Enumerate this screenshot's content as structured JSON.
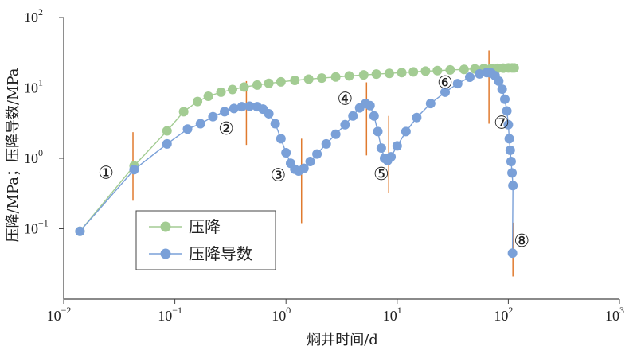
{
  "chart_data": {
    "type": "scatter",
    "xscale": "log",
    "yscale": "log",
    "xlim": [
      0.01,
      1000
    ],
    "ylim": [
      0.01,
      100
    ],
    "xlabel": "焖井时间/d",
    "ylabel": "压降/MPa；压降导数/MPa",
    "x_ticks": [
      {
        "base": "10",
        "exp": "−2"
      },
      {
        "base": "10",
        "exp": "−1"
      },
      {
        "base": "10",
        "exp": "0"
      },
      {
        "base": "10",
        "exp": "1"
      },
      {
        "base": "10",
        "exp": "2"
      },
      {
        "base": "10",
        "exp": "3"
      }
    ],
    "y_ticks": [
      {
        "base": "10",
        "exp": "−1"
      },
      {
        "base": "10",
        "exp": "0"
      },
      {
        "base": "10",
        "exp": "1"
      },
      {
        "base": "10",
        "exp": "2"
      }
    ],
    "legend": {
      "placement": "lower-left-inside"
    },
    "series": [
      {
        "name": "压降",
        "color": "#a3cc93",
        "points": [
          [
            0.014,
            0.092
          ],
          [
            0.043,
            0.78
          ],
          [
            0.085,
            2.45
          ],
          [
            0.12,
            4.6
          ],
          [
            0.16,
            6.4
          ],
          [
            0.2,
            7.6
          ],
          [
            0.26,
            8.7
          ],
          [
            0.33,
            9.5
          ],
          [
            0.42,
            10.3
          ],
          [
            0.55,
            11.0
          ],
          [
            0.7,
            11.6
          ],
          [
            0.9,
            12.2
          ],
          [
            1.2,
            12.8
          ],
          [
            1.6,
            13.3
          ],
          [
            2.1,
            13.8
          ],
          [
            2.8,
            14.3
          ],
          [
            3.7,
            14.8
          ],
          [
            5.0,
            15.3
          ],
          [
            6.5,
            15.7
          ],
          [
            8.5,
            16.1
          ],
          [
            11,
            16.5
          ],
          [
            14,
            16.9
          ],
          [
            18,
            17.3
          ],
          [
            23,
            17.6
          ],
          [
            30,
            18.0
          ],
          [
            40,
            18.3
          ],
          [
            50,
            18.6
          ],
          [
            60,
            18.8
          ],
          [
            70,
            18.9
          ],
          [
            80,
            19.0
          ],
          [
            90,
            19.1
          ],
          [
            100,
            19.2
          ],
          [
            108,
            19.2
          ],
          [
            113,
            19.2
          ]
        ]
      },
      {
        "name": "压降导数",
        "color": "#7aa0d8",
        "points": [
          [
            0.014,
            0.092
          ],
          [
            0.043,
            0.69
          ],
          [
            0.085,
            1.6
          ],
          [
            0.13,
            2.6
          ],
          [
            0.17,
            3.1
          ],
          [
            0.22,
            3.9
          ],
          [
            0.28,
            4.6
          ],
          [
            0.34,
            5.1
          ],
          [
            0.4,
            5.4
          ],
          [
            0.47,
            5.5
          ],
          [
            0.55,
            5.4
          ],
          [
            0.62,
            5.0
          ],
          [
            0.7,
            4.3
          ],
          [
            0.8,
            3.1
          ],
          [
            0.9,
            1.9
          ],
          [
            1.0,
            1.2
          ],
          [
            1.1,
            0.85
          ],
          [
            1.2,
            0.7
          ],
          [
            1.3,
            0.66
          ],
          [
            1.45,
            0.72
          ],
          [
            1.65,
            0.9
          ],
          [
            1.9,
            1.15
          ],
          [
            2.3,
            1.6
          ],
          [
            2.8,
            2.2
          ],
          [
            3.4,
            3.0
          ],
          [
            4.0,
            4.0
          ],
          [
            4.6,
            5.2
          ],
          [
            5.2,
            6.0
          ],
          [
            5.7,
            5.6
          ],
          [
            6.2,
            4.0
          ],
          [
            6.7,
            2.4
          ],
          [
            7.2,
            1.4
          ],
          [
            7.7,
            1.0
          ],
          [
            8.2,
            0.93
          ],
          [
            8.8,
            1.05
          ],
          [
            10,
            1.5
          ],
          [
            12,
            2.4
          ],
          [
            15,
            3.8
          ],
          [
            20,
            6.0
          ],
          [
            27,
            8.7
          ],
          [
            35,
            11.5
          ],
          [
            45,
            14.2
          ],
          [
            55,
            15.8
          ],
          [
            64,
            16.5
          ],
          [
            70,
            16.3
          ],
          [
            76,
            14.9
          ],
          [
            82,
            12.5
          ],
          [
            88,
            9.6
          ],
          [
            93,
            6.9
          ],
          [
            97,
            4.7
          ],
          [
            100,
            3.0
          ],
          [
            102,
            1.9
          ],
          [
            104,
            1.3
          ],
          [
            106,
            0.9
          ],
          [
            108,
            0.62
          ],
          [
            110,
            0.41
          ],
          [
            109,
            0.045
          ]
        ]
      }
    ],
    "annotations": [
      {
        "label": "①",
        "x": 0.024,
        "y": 0.6
      },
      {
        "label": "②",
        "x": 0.29,
        "y": 2.55
      },
      {
        "label": "③",
        "x": 0.85,
        "y": 0.56
      },
      {
        "label": "④",
        "x": 3.4,
        "y": 6.8
      },
      {
        "label": "⑤",
        "x": 7.2,
        "y": 0.58
      },
      {
        "label": "⑥",
        "x": 27,
        "y": 11.5
      },
      {
        "label": "⑦",
        "x": 87,
        "y": 3.1
      },
      {
        "label": "⑧",
        "x": 132,
        "y": 0.065
      }
    ],
    "boundary_markers": {
      "color": "#e07a2e",
      "lines": [
        {
          "x": 0.042,
          "y_low": 0.25,
          "y_high": 2.35
        },
        {
          "x": 0.44,
          "y_low": 1.55,
          "y_high": 12.5
        },
        {
          "x": 1.38,
          "y_low": 0.12,
          "y_high": 1.9
        },
        {
          "x": 5.3,
          "y_low": 1.1,
          "y_high": 12.0
        },
        {
          "x": 8.4,
          "y_low": 0.32,
          "y_high": 4.0
        },
        {
          "x": 67,
          "y_low": 3.1,
          "y_high": 34
        },
        {
          "x": 110,
          "y_low": 0.021,
          "y_high": 0.122
        }
      ]
    }
  }
}
